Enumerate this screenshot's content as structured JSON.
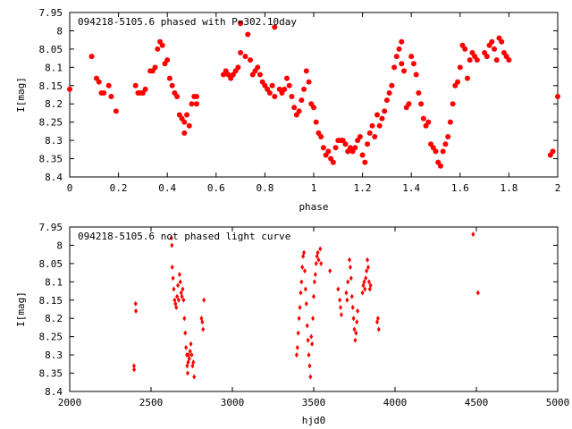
{
  "chart_data": [
    {
      "type": "scatter",
      "title": "094218-5105.6 phased with P=302.10day",
      "xlabel": "phase",
      "ylabel": "I[mag]",
      "xlim": [
        0,
        2
      ],
      "ylim": [
        8.4,
        7.95
      ],
      "y_inverted": true,
      "grid": false,
      "legend": "none",
      "marker": "filled-circle",
      "series_color": "#ff0000",
      "x_ticks": [
        "0",
        "0.2",
        "0.4",
        "0.6",
        "0.8",
        "1",
        "1.2",
        "1.4",
        "1.6",
        "1.8",
        "2"
      ],
      "y_ticks": [
        "7.95",
        "8",
        "8.05",
        "8.1",
        "8.15",
        "8.2",
        "8.25",
        "8.3",
        "8.35",
        "8.4"
      ],
      "series": [
        {
          "points": [
            [
              0.0,
              8.16
            ],
            [
              0.09,
              8.07
            ],
            [
              0.11,
              8.13
            ],
            [
              0.12,
              8.14
            ],
            [
              0.13,
              8.17
            ],
            [
              0.14,
              8.17
            ],
            [
              0.16,
              8.15
            ],
            [
              0.17,
              8.18
            ],
            [
              0.19,
              8.22
            ],
            [
              0.27,
              8.15
            ],
            [
              0.28,
              8.17
            ],
            [
              0.29,
              8.17
            ],
            [
              0.3,
              8.17
            ],
            [
              0.31,
              8.16
            ],
            [
              0.33,
              8.11
            ],
            [
              0.34,
              8.11
            ],
            [
              0.35,
              8.1
            ],
            [
              0.36,
              8.05
            ],
            [
              0.37,
              8.03
            ],
            [
              0.38,
              8.04
            ],
            [
              0.39,
              8.09
            ],
            [
              0.4,
              8.08
            ],
            [
              0.41,
              8.13
            ],
            [
              0.42,
              8.15
            ],
            [
              0.43,
              8.17
            ],
            [
              0.44,
              8.18
            ],
            [
              0.45,
              8.23
            ],
            [
              0.46,
              8.24
            ],
            [
              0.47,
              8.25
            ],
            [
              0.47,
              8.28
            ],
            [
              0.48,
              8.23
            ],
            [
              0.49,
              8.26
            ],
            [
              0.5,
              8.2
            ],
            [
              0.51,
              8.18
            ],
            [
              0.52,
              8.2
            ],
            [
              0.52,
              8.18
            ],
            [
              0.63,
              8.12
            ],
            [
              0.64,
              8.11
            ],
            [
              0.65,
              8.12
            ],
            [
              0.66,
              8.13
            ],
            [
              0.67,
              8.12
            ],
            [
              0.68,
              8.11
            ],
            [
              0.69,
              8.1
            ],
            [
              0.7,
              8.06
            ],
            [
              0.7,
              7.98
            ],
            [
              0.72,
              8.07
            ],
            [
              0.73,
              8.01
            ],
            [
              0.74,
              8.08
            ],
            [
              0.75,
              8.12
            ],
            [
              0.76,
              8.11
            ],
            [
              0.77,
              8.1
            ],
            [
              0.78,
              8.12
            ],
            [
              0.79,
              8.14
            ],
            [
              0.8,
              8.15
            ],
            [
              0.81,
              8.16
            ],
            [
              0.82,
              8.17
            ],
            [
              0.83,
              8.15
            ],
            [
              0.84,
              8.18
            ],
            [
              0.84,
              7.99
            ],
            [
              0.86,
              8.16
            ],
            [
              0.87,
              8.17
            ],
            [
              0.88,
              8.16
            ],
            [
              0.89,
              8.13
            ],
            [
              0.9,
              8.15
            ],
            [
              0.91,
              8.18
            ],
            [
              0.92,
              8.21
            ],
            [
              0.93,
              8.23
            ],
            [
              0.94,
              8.22
            ],
            [
              0.95,
              8.19
            ],
            [
              0.96,
              8.16
            ],
            [
              0.97,
              8.11
            ],
            [
              0.98,
              8.14
            ],
            [
              0.99,
              8.2
            ],
            [
              1.0,
              8.21
            ],
            [
              1.01,
              8.25
            ],
            [
              1.02,
              8.28
            ],
            [
              1.03,
              8.29
            ],
            [
              1.04,
              8.32
            ],
            [
              1.05,
              8.34
            ],
            [
              1.06,
              8.33
            ],
            [
              1.07,
              8.35
            ],
            [
              1.08,
              8.36
            ],
            [
              1.09,
              8.32
            ],
            [
              1.1,
              8.3
            ],
            [
              1.11,
              8.3
            ],
            [
              1.12,
              8.3
            ],
            [
              1.13,
              8.31
            ],
            [
              1.14,
              8.33
            ],
            [
              1.15,
              8.32
            ],
            [
              1.16,
              8.33
            ],
            [
              1.17,
              8.32
            ],
            [
              1.18,
              8.3
            ],
            [
              1.19,
              8.29
            ],
            [
              1.2,
              8.34
            ],
            [
              1.21,
              8.36
            ],
            [
              1.22,
              8.31
            ],
            [
              1.23,
              8.28
            ],
            [
              1.24,
              8.26
            ],
            [
              1.25,
              8.29
            ],
            [
              1.26,
              8.23
            ],
            [
              1.27,
              8.26
            ],
            [
              1.28,
              8.24
            ],
            [
              1.29,
              8.22
            ],
            [
              1.3,
              8.19
            ],
            [
              1.31,
              8.17
            ],
            [
              1.32,
              8.15
            ],
            [
              1.33,
              8.1
            ],
            [
              1.34,
              8.07
            ],
            [
              1.35,
              8.05
            ],
            [
              1.36,
              8.03
            ],
            [
              1.36,
              8.09
            ],
            [
              1.37,
              8.11
            ],
            [
              1.38,
              8.21
            ],
            [
              1.39,
              8.2
            ],
            [
              1.4,
              8.07
            ],
            [
              1.41,
              8.09
            ],
            [
              1.42,
              8.12
            ],
            [
              1.43,
              8.17
            ],
            [
              1.44,
              8.2
            ],
            [
              1.45,
              8.24
            ],
            [
              1.46,
              8.26
            ],
            [
              1.47,
              8.25
            ],
            [
              1.48,
              8.31
            ],
            [
              1.49,
              8.32
            ],
            [
              1.5,
              8.33
            ],
            [
              1.51,
              8.36
            ],
            [
              1.52,
              8.37
            ],
            [
              1.53,
              8.33
            ],
            [
              1.54,
              8.31
            ],
            [
              1.55,
              8.29
            ],
            [
              1.56,
              8.25
            ],
            [
              1.57,
              8.2
            ],
            [
              1.58,
              8.15
            ],
            [
              1.59,
              8.14
            ],
            [
              1.6,
              8.1
            ],
            [
              1.61,
              8.04
            ],
            [
              1.62,
              8.05
            ],
            [
              1.63,
              8.13
            ],
            [
              1.64,
              8.08
            ],
            [
              1.65,
              8.06
            ],
            [
              1.66,
              8.07
            ],
            [
              1.67,
              8.08
            ],
            [
              1.7,
              8.06
            ],
            [
              1.71,
              8.07
            ],
            [
              1.72,
              8.04
            ],
            [
              1.73,
              8.03
            ],
            [
              1.74,
              8.05
            ],
            [
              1.75,
              8.08
            ],
            [
              1.76,
              8.02
            ],
            [
              1.77,
              8.03
            ],
            [
              1.78,
              8.06
            ],
            [
              1.79,
              8.07
            ],
            [
              1.8,
              8.08
            ],
            [
              1.97,
              8.34
            ],
            [
              1.98,
              8.33
            ],
            [
              2.0,
              8.18
            ]
          ]
        }
      ]
    },
    {
      "type": "scatter",
      "title": "094218-5105.6 not phased light curve",
      "xlabel": "hjd0",
      "ylabel": "I[mag]",
      "xlim": [
        2000,
        5000
      ],
      "ylim": [
        8.4,
        7.95
      ],
      "y_inverted": true,
      "grid": false,
      "legend": "none",
      "marker": "small-diamond",
      "series_color": "#ff0000",
      "x_ticks": [
        "2000",
        "2500",
        "3000",
        "3500",
        "4000",
        "4500",
        "5000"
      ],
      "y_ticks": [
        "7.95",
        "8",
        "8.05",
        "8.1",
        "8.15",
        "8.2",
        "8.25",
        "8.3",
        "8.35",
        "8.4"
      ],
      "series": [
        {
          "points": [
            [
              2395,
              8.33
            ],
            [
              2396,
              8.34
            ],
            [
              2405,
              8.16
            ],
            [
              2407,
              8.18
            ],
            [
              2625,
              7.98
            ],
            [
              2628,
              8.0
            ],
            [
              2630,
              8.06
            ],
            [
              2635,
              8.09
            ],
            [
              2640,
              8.12
            ],
            [
              2645,
              8.15
            ],
            [
              2650,
              8.16
            ],
            [
              2655,
              8.17
            ],
            [
              2660,
              8.14
            ],
            [
              2665,
              8.11
            ],
            [
              2670,
              8.15
            ],
            [
              2675,
              8.08
            ],
            [
              2680,
              8.1
            ],
            [
              2685,
              8.13
            ],
            [
              2690,
              8.14
            ],
            [
              2695,
              8.12
            ],
            [
              2700,
              8.15
            ],
            [
              2705,
              8.2
            ],
            [
              2710,
              8.24
            ],
            [
              2715,
              8.28
            ],
            [
              2720,
              8.3
            ],
            [
              2722,
              8.33
            ],
            [
              2725,
              8.35
            ],
            [
              2728,
              8.32
            ],
            [
              2730,
              8.3
            ],
            [
              2735,
              8.31
            ],
            [
              2740,
              8.29
            ],
            [
              2745,
              8.27
            ],
            [
              2750,
              8.3
            ],
            [
              2755,
              8.33
            ],
            [
              2760,
              8.32
            ],
            [
              2765,
              8.36
            ],
            [
              2810,
              8.2
            ],
            [
              2815,
              8.21
            ],
            [
              2820,
              8.23
            ],
            [
              2825,
              8.15
            ],
            [
              3395,
              8.3
            ],
            [
              3400,
              8.28
            ],
            [
              3405,
              8.24
            ],
            [
              3410,
              8.2
            ],
            [
              3415,
              8.17
            ],
            [
              3420,
              8.13
            ],
            [
              3425,
              8.1
            ],
            [
              3430,
              8.06
            ],
            [
              3435,
              8.03
            ],
            [
              3440,
              8.02
            ],
            [
              3445,
              8.07
            ],
            [
              3450,
              8.12
            ],
            [
              3455,
              8.16
            ],
            [
              3460,
              8.22
            ],
            [
              3465,
              8.26
            ],
            [
              3470,
              8.3
            ],
            [
              3475,
              8.33
            ],
            [
              3480,
              8.36
            ],
            [
              3485,
              8.25
            ],
            [
              3490,
              8.27
            ],
            [
              3495,
              8.2
            ],
            [
              3500,
              8.14
            ],
            [
              3505,
              8.1
            ],
            [
              3510,
              8.08
            ],
            [
              3515,
              8.05
            ],
            [
              3520,
              8.03
            ],
            [
              3525,
              8.02
            ],
            [
              3530,
              8.04
            ],
            [
              3540,
              8.01
            ],
            [
              3545,
              8.05
            ],
            [
              3600,
              8.07
            ],
            [
              3650,
              8.12
            ],
            [
              3660,
              8.15
            ],
            [
              3665,
              8.17
            ],
            [
              3670,
              8.19
            ],
            [
              3700,
              8.13
            ],
            [
              3705,
              8.15
            ],
            [
              3710,
              8.1
            ],
            [
              3720,
              8.04
            ],
            [
              3725,
              8.06
            ],
            [
              3730,
              8.09
            ],
            [
              3735,
              8.14
            ],
            [
              3740,
              8.17
            ],
            [
              3745,
              8.2
            ],
            [
              3750,
              8.23
            ],
            [
              3755,
              8.26
            ],
            [
              3760,
              8.24
            ],
            [
              3765,
              8.21
            ],
            [
              3770,
              8.18
            ],
            [
              3800,
              8.13
            ],
            [
              3805,
              8.11
            ],
            [
              3810,
              8.1
            ],
            [
              3815,
              8.12
            ],
            [
              3820,
              8.09
            ],
            [
              3825,
              8.07
            ],
            [
              3830,
              8.04
            ],
            [
              3835,
              8.06
            ],
            [
              3840,
              8.1
            ],
            [
              3845,
              8.12
            ],
            [
              3850,
              8.11
            ],
            [
              3890,
              8.21
            ],
            [
              3895,
              8.2
            ],
            [
              3900,
              8.23
            ],
            [
              4480,
              7.97
            ],
            [
              4510,
              8.13
            ]
          ]
        }
      ]
    }
  ]
}
